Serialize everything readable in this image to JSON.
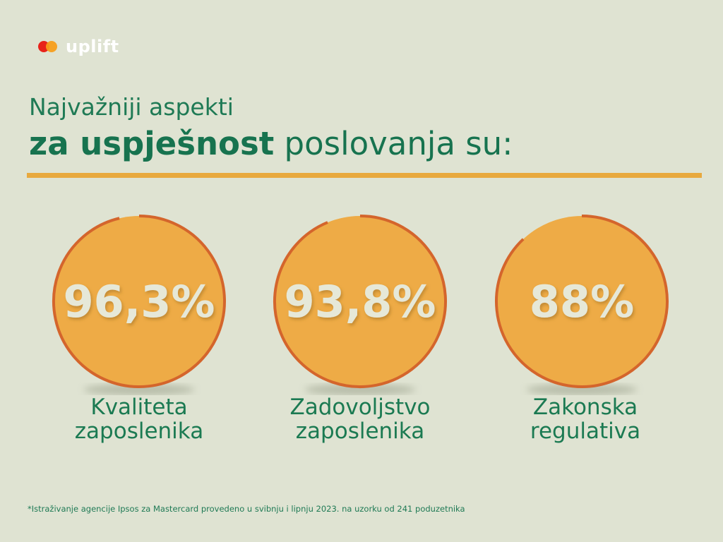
{
  "brand": {
    "name": "uplift",
    "colors": {
      "red": "#e8231a",
      "orange": "#f79e1b"
    }
  },
  "title": {
    "line1": "Najvažniji aspekti",
    "bold": "za uspješnost",
    "rest": " poslovanja su:"
  },
  "chart_data": {
    "type": "pie",
    "style": "radial-progress circles",
    "categories": [
      "Kvaliteta zaposlenika",
      "Zadovoljstvo zaposlenika",
      "Zakonska regulativa"
    ],
    "values": [
      96.3,
      93.8,
      88
    ],
    "value_labels": [
      "96,3%",
      "93,8%",
      "88%"
    ],
    "label_lines": [
      [
        "Kvaliteta",
        "zaposlenika"
      ],
      [
        "Zadovoljstvo",
        "zaposlenika"
      ],
      [
        "Zakonska",
        "regulativa"
      ]
    ],
    "max": 100,
    "colors": {
      "fill": "#eeab46",
      "ring": "#d4652c",
      "value_text": "#e6e8d8"
    }
  },
  "footnote": "*Istraživanje agencije Ipsos za Mastercard provedeno u svibnju i lipnju 2023. na uzorku od 241 poduzetnika"
}
